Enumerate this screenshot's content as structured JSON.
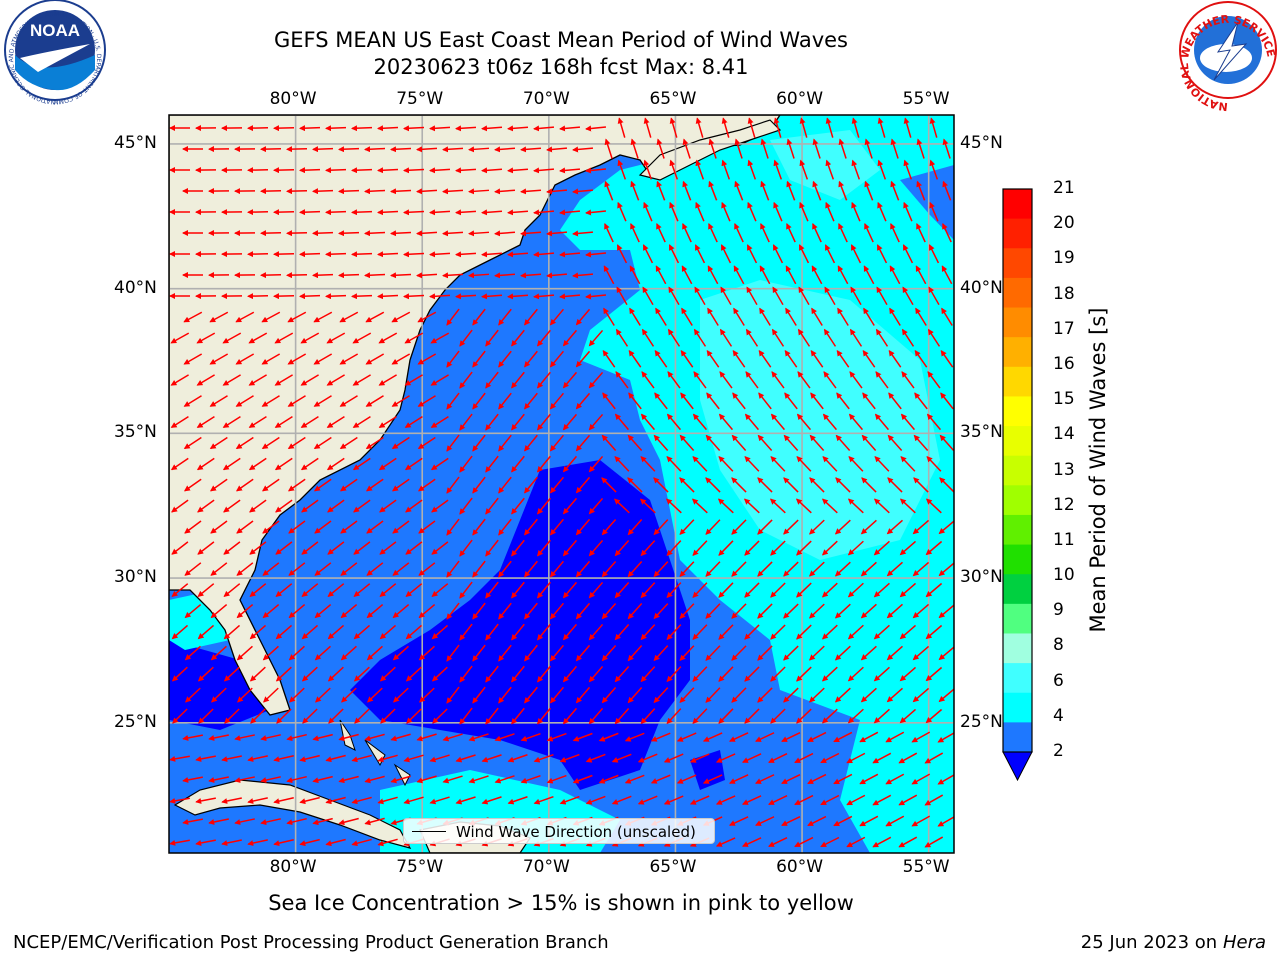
{
  "title": {
    "line1": "GEFS MEAN US East Coast Mean Period of Wind Waves",
    "line2": "20230623 t06z 168h fcst   Max: 8.41"
  },
  "map": {
    "lon_range": [
      -85,
      -54
    ],
    "lat_range": [
      20.5,
      46
    ],
    "lon_ticks": [
      "80°W",
      "75°W",
      "70°W",
      "65°W",
      "60°W",
      "55°W"
    ],
    "lat_ticks": [
      "45°N",
      "40°N",
      "35°N",
      "30°N",
      "25°N"
    ],
    "grid": true,
    "colors": {
      "land": "#efeedc",
      "ocean_2_4": "#1e78ff",
      "ocean_below_2": "#0000ff",
      "ocean_4_6": "#00ffff",
      "ocean_6_8": "#40ffff",
      "arrow": "#ff0000",
      "coastline": "#000000",
      "gridline": "#b0b0b0"
    },
    "legend_label": "Wind Wave Direction (unscaled)"
  },
  "colorbar": {
    "label": "Mean Period of Wind Waves [s]",
    "tick_labels": [
      "21",
      "20",
      "19",
      "18",
      "17",
      "16",
      "15",
      "14",
      "13",
      "12",
      "11",
      "10",
      "9",
      "8",
      "6",
      "4",
      "2"
    ],
    "colors": [
      "#ff0000",
      "#ff2000",
      "#ff4800",
      "#ff6a00",
      "#ff8c00",
      "#ffb000",
      "#ffd800",
      "#ffff00",
      "#e8ff00",
      "#c8ff00",
      "#a0ff00",
      "#60f000",
      "#20e000",
      "#00d040",
      "#50ff80",
      "#a0ffe0",
      "#40ffff",
      "#00ffff",
      "#1e78ff"
    ],
    "extend_color": "#0000ff"
  },
  "caption": "Sea Ice Concentration > 15% is shown in pink to yellow",
  "footer": {
    "left": "NCEP/EMC/Verification Post Processing Product Generation Branch",
    "right_date": "25 Jun 2023 on",
    "right_host": "Hera"
  },
  "logos": {
    "noaa": "NOAA",
    "noaa_ring": "NATIONAL OCEANIC AND ATMOSPHERIC ADMINISTRATION · U.S. DEPARTMENT OF COMMERCE",
    "nws_ring": "NATIONAL WEATHER SERVICE"
  }
}
